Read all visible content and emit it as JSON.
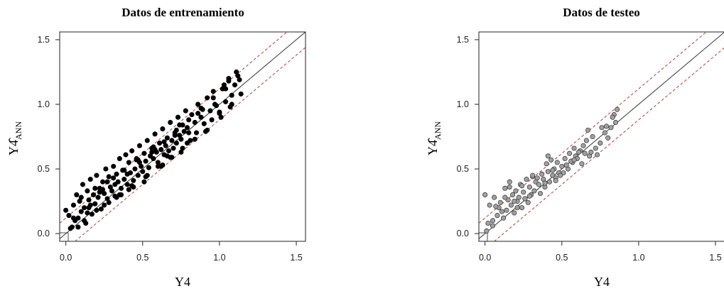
{
  "chart_data": [
    {
      "type": "scatter",
      "title": "Datos de entrenamiento",
      "xlabel": "Y4",
      "ylabel": "Y4̂",
      "ylabel_subscript": "ANN",
      "xlim": [
        0.0,
        1.5
      ],
      "ylim": [
        0.0,
        1.5
      ],
      "x_ticks": [
        "0.0",
        "0.5",
        "1.0",
        "1.5"
      ],
      "y_ticks": [
        "0.0",
        "0.5",
        "1.0",
        "1.5"
      ],
      "grid": false,
      "point_fill": "#000000",
      "point_stroke": "#000000",
      "reference_lines": [
        {
          "kind": "identity",
          "slope": 1,
          "intercept": 0,
          "color": "#333333",
          "dash": "solid"
        },
        {
          "kind": "upper-band",
          "slope": 1,
          "intercept": 0.12,
          "color": "#b04040",
          "dash": "dashed"
        },
        {
          "kind": "lower-band",
          "slope": 1,
          "intercept": -0.12,
          "color": "#b04040",
          "dash": "dashed"
        }
      ],
      "series": [
        {
          "x": [
            0.0,
            0.02,
            0.04,
            0.05,
            0.06,
            0.07,
            0.08,
            0.09,
            0.1,
            0.11,
            0.12,
            0.13,
            0.14,
            0.15,
            0.16,
            0.17,
            0.18,
            0.19,
            0.2,
            0.21,
            0.22,
            0.23,
            0.24,
            0.25,
            0.26,
            0.27,
            0.28,
            0.29,
            0.3,
            0.31,
            0.32,
            0.33,
            0.34,
            0.35,
            0.36,
            0.37,
            0.38,
            0.39,
            0.4,
            0.41,
            0.42,
            0.43,
            0.44,
            0.45,
            0.46,
            0.47,
            0.48,
            0.49,
            0.5,
            0.51,
            0.52,
            0.53,
            0.54,
            0.55,
            0.56,
            0.57,
            0.58,
            0.59,
            0.6,
            0.61,
            0.62,
            0.63,
            0.64,
            0.65,
            0.66,
            0.67,
            0.68,
            0.69,
            0.7,
            0.71,
            0.72,
            0.73,
            0.74,
            0.75,
            0.76,
            0.77,
            0.78,
            0.79,
            0.8,
            0.82,
            0.84,
            0.86,
            0.88,
            0.9,
            0.92,
            0.94,
            0.96,
            0.98,
            1.0,
            1.02,
            1.04,
            1.06,
            1.08,
            1.1,
            1.12,
            1.14,
            0.08,
            0.12,
            0.16,
            0.2,
            0.24,
            0.28,
            0.32,
            0.36,
            0.4,
            0.44,
            0.48,
            0.52,
            0.56,
            0.6,
            0.64,
            0.68,
            0.72,
            0.76,
            0.8,
            0.84,
            0.88,
            0.92,
            0.96,
            1.0,
            1.04,
            1.08,
            0.05,
            0.1,
            0.15,
            0.22,
            0.27,
            0.33,
            0.38,
            0.43,
            0.47,
            0.53,
            0.58,
            0.62,
            0.66,
            0.71,
            0.75,
            0.81,
            0.86,
            0.91,
            0.97,
            1.01,
            1.06,
            1.11,
            0.03,
            0.14,
            0.19,
            0.25,
            0.31,
            0.35,
            0.41,
            0.46,
            0.51,
            0.57,
            0.63,
            0.69,
            0.74,
            0.79,
            0.85,
            0.89,
            0.95,
            1.03,
            1.07,
            1.13
          ],
          "y": [
            0.18,
            0.14,
            0.05,
            0.22,
            0.1,
            0.3,
            0.12,
            0.25,
            0.17,
            0.38,
            0.2,
            0.08,
            0.33,
            0.26,
            0.42,
            0.15,
            0.3,
            0.23,
            0.45,
            0.28,
            0.35,
            0.19,
            0.4,
            0.31,
            0.5,
            0.27,
            0.44,
            0.36,
            0.33,
            0.52,
            0.29,
            0.46,
            0.4,
            0.58,
            0.35,
            0.49,
            0.42,
            0.61,
            0.38,
            0.55,
            0.47,
            0.64,
            0.41,
            0.5,
            0.57,
            0.45,
            0.68,
            0.52,
            0.48,
            0.62,
            0.56,
            0.72,
            0.51,
            0.6,
            0.66,
            0.58,
            0.77,
            0.63,
            0.55,
            0.7,
            0.65,
            0.81,
            0.61,
            0.68,
            0.74,
            0.64,
            0.86,
            0.72,
            0.66,
            0.78,
            0.7,
            0.9,
            0.76,
            0.73,
            0.84,
            0.79,
            0.95,
            0.82,
            0.78,
            0.92,
            0.86,
            1.0,
            0.9,
            0.85,
            1.05,
            0.95,
            1.1,
            0.99,
            0.93,
            1.12,
            1.02,
            1.18,
            1.07,
            1.15,
            1.22,
            1.08,
            0.05,
            0.1,
            0.22,
            0.18,
            0.34,
            0.24,
            0.38,
            0.3,
            0.46,
            0.36,
            0.55,
            0.44,
            0.63,
            0.52,
            0.71,
            0.59,
            0.8,
            0.66,
            0.88,
            0.73,
            0.97,
            0.8,
            1.05,
            0.94,
            1.12,
            1.0,
            0.12,
            0.28,
            0.2,
            0.32,
            0.4,
            0.28,
            0.49,
            0.37,
            0.57,
            0.45,
            0.65,
            0.52,
            0.6,
            0.76,
            0.63,
            0.72,
            0.93,
            0.79,
            1.0,
            0.9,
            1.2,
            1.25,
            0.04,
            0.16,
            0.35,
            0.22,
            0.43,
            0.3,
            0.34,
            0.58,
            0.4,
            0.67,
            0.53,
            0.59,
            0.84,
            0.7,
            0.78,
            0.96,
            0.88,
            1.15,
            0.98,
            1.19
          ]
        }
      ]
    },
    {
      "type": "scatter",
      "title": "Datos de testeo",
      "xlabel": "Y4",
      "ylabel": "Y4̂",
      "ylabel_subscript": "ANN",
      "xlim": [
        0.0,
        1.5
      ],
      "ylim": [
        0.0,
        1.5
      ],
      "x_ticks": [
        "0.0",
        "0.5",
        "1.0",
        "1.5"
      ],
      "y_ticks": [
        "0.0",
        "0.5",
        "1.0",
        "1.5"
      ],
      "grid": false,
      "point_fill": "#a0a0a0",
      "point_stroke": "#333333",
      "reference_lines": [
        {
          "kind": "identity",
          "slope": 1,
          "intercept": 0,
          "color": "#333333",
          "dash": "solid"
        },
        {
          "kind": "upper-band",
          "slope": 1,
          "intercept": 0.12,
          "color": "#b04040",
          "dash": "dashed"
        },
        {
          "kind": "lower-band",
          "slope": 1,
          "intercept": -0.12,
          "color": "#b04040",
          "dash": "dashed"
        }
      ],
      "series": [
        {
          "x": [
            0.0,
            0.01,
            0.03,
            0.05,
            0.06,
            0.08,
            0.09,
            0.1,
            0.12,
            0.13,
            0.14,
            0.15,
            0.16,
            0.17,
            0.18,
            0.19,
            0.2,
            0.21,
            0.22,
            0.23,
            0.24,
            0.25,
            0.26,
            0.27,
            0.28,
            0.29,
            0.3,
            0.31,
            0.32,
            0.33,
            0.35,
            0.37,
            0.38,
            0.39,
            0.4,
            0.41,
            0.42,
            0.43,
            0.44,
            0.45,
            0.46,
            0.47,
            0.48,
            0.5,
            0.52,
            0.54,
            0.55,
            0.57,
            0.58,
            0.59,
            0.6,
            0.62,
            0.63,
            0.65,
            0.66,
            0.68,
            0.7,
            0.72,
            0.75,
            0.78,
            0.8,
            0.82,
            0.84,
            0.85,
            0.86,
            0.05,
            0.11,
            0.16,
            0.21,
            0.26,
            0.31,
            0.36,
            0.41,
            0.46,
            0.51,
            0.56,
            0.61,
            0.67,
            0.73,
            0.79,
            0.02,
            0.07,
            0.13,
            0.19,
            0.24,
            0.29,
            0.34,
            0.39,
            0.44,
            0.49,
            0.53,
            0.58,
            0.64,
            0.69,
            0.76,
            0.83
          ],
          "y": [
            0.3,
            0.02,
            0.22,
            0.1,
            0.28,
            0.14,
            0.2,
            0.24,
            0.12,
            0.35,
            0.18,
            0.26,
            0.4,
            0.22,
            0.3,
            0.16,
            0.33,
            0.25,
            0.28,
            0.38,
            0.2,
            0.32,
            0.27,
            0.42,
            0.24,
            0.36,
            0.3,
            0.44,
            0.33,
            0.4,
            0.38,
            0.46,
            0.42,
            0.36,
            0.54,
            0.48,
            0.4,
            0.57,
            0.45,
            0.5,
            0.43,
            0.55,
            0.47,
            0.52,
            0.58,
            0.5,
            0.62,
            0.55,
            0.66,
            0.6,
            0.58,
            0.64,
            0.54,
            0.62,
            0.72,
            0.6,
            0.75,
            0.66,
            0.7,
            0.78,
            0.74,
            0.82,
            0.92,
            0.86,
            0.96,
            0.06,
            0.17,
            0.36,
            0.2,
            0.27,
            0.45,
            0.31,
            0.6,
            0.41,
            0.47,
            0.56,
            0.63,
            0.8,
            0.61,
            0.83,
            0.08,
            0.21,
            0.28,
            0.25,
            0.37,
            0.29,
            0.43,
            0.39,
            0.49,
            0.45,
            0.53,
            0.57,
            0.68,
            0.63,
            0.82,
            0.9
          ]
        }
      ]
    }
  ]
}
